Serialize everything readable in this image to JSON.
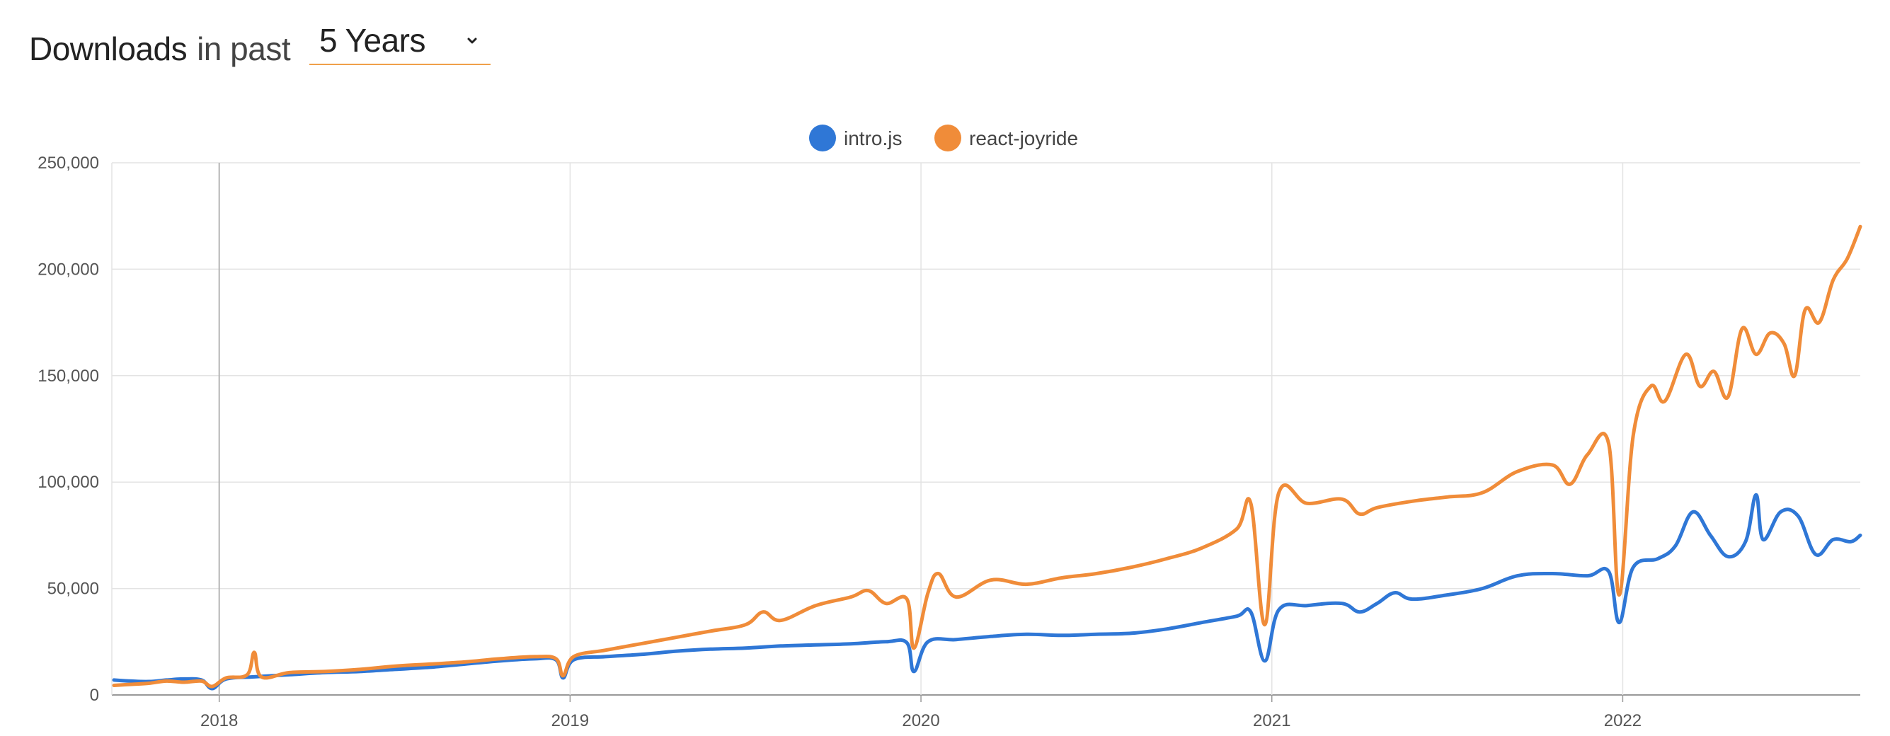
{
  "header": {
    "title_strong": "Downloads",
    "title_light": "in past",
    "period_select": {
      "selected": "5 Years"
    }
  },
  "colors": {
    "accent": "#f0a04a",
    "intro_js": "#2f77d6",
    "react_joyride": "#f08c39",
    "grid": "#e3e3e3",
    "axis": "#999999"
  },
  "icons": {
    "dropdown": "chevron-down-icon"
  },
  "chart_data": {
    "type": "line",
    "title": "",
    "xlabel": "",
    "ylabel": "",
    "legend_position": "top-center",
    "grid": true,
    "xlim": [
      2017.694,
      2022.677
    ],
    "ylim": [
      0,
      250000
    ],
    "y_ticks": [
      0,
      50000,
      100000,
      150000,
      200000,
      250000
    ],
    "y_tick_labels": [
      "0",
      "50,000",
      "100,000",
      "150,000",
      "200,000",
      "250,000"
    ],
    "x_ticks": [
      2018,
      2019,
      2020,
      2021,
      2022
    ],
    "x_tick_labels": [
      "2018",
      "2019",
      "2020",
      "2021",
      "2022"
    ],
    "series": [
      {
        "name": "intro.js",
        "color": "#2f77d6",
        "points": [
          [
            2017.7,
            7000
          ],
          [
            2017.75,
            6500
          ],
          [
            2017.8,
            6300
          ],
          [
            2017.85,
            7000
          ],
          [
            2017.9,
            7500
          ],
          [
            2017.95,
            7000
          ],
          [
            2017.98,
            3000
          ],
          [
            2018.02,
            7500
          ],
          [
            2018.1,
            8500
          ],
          [
            2018.2,
            9500
          ],
          [
            2018.3,
            10500
          ],
          [
            2018.4,
            11000
          ],
          [
            2018.5,
            12000
          ],
          [
            2018.6,
            13000
          ],
          [
            2018.7,
            14500
          ],
          [
            2018.8,
            16000
          ],
          [
            2018.9,
            17000
          ],
          [
            2018.96,
            16500
          ],
          [
            2018.98,
            8000
          ],
          [
            2019.01,
            16500
          ],
          [
            2019.1,
            18000
          ],
          [
            2019.2,
            19000
          ],
          [
            2019.3,
            20500
          ],
          [
            2019.4,
            21500
          ],
          [
            2019.5,
            22000
          ],
          [
            2019.6,
            23000
          ],
          [
            2019.7,
            23500
          ],
          [
            2019.8,
            24000
          ],
          [
            2019.9,
            25000
          ],
          [
            2019.96,
            24500
          ],
          [
            2019.98,
            11000
          ],
          [
            2020.02,
            25000
          ],
          [
            2020.1,
            26000
          ],
          [
            2020.2,
            27500
          ],
          [
            2020.3,
            28500
          ],
          [
            2020.4,
            28000
          ],
          [
            2020.5,
            28500
          ],
          [
            2020.6,
            29000
          ],
          [
            2020.7,
            31000
          ],
          [
            2020.8,
            34000
          ],
          [
            2020.9,
            37000
          ],
          [
            2020.94,
            39000
          ],
          [
            2020.98,
            16000
          ],
          [
            2021.02,
            40000
          ],
          [
            2021.1,
            42000
          ],
          [
            2021.2,
            43000
          ],
          [
            2021.25,
            39000
          ],
          [
            2021.3,
            43000
          ],
          [
            2021.35,
            48000
          ],
          [
            2021.4,
            45000
          ],
          [
            2021.5,
            47000
          ],
          [
            2021.6,
            50000
          ],
          [
            2021.7,
            56000
          ],
          [
            2021.8,
            57000
          ],
          [
            2021.9,
            56000
          ],
          [
            2021.96,
            58000
          ],
          [
            2021.99,
            34000
          ],
          [
            2022.03,
            60000
          ],
          [
            2022.1,
            64000
          ],
          [
            2022.15,
            70000
          ],
          [
            2022.2,
            86000
          ],
          [
            2022.25,
            75000
          ],
          [
            2022.3,
            65000
          ],
          [
            2022.35,
            72000
          ],
          [
            2022.38,
            94000
          ],
          [
            2022.4,
            73000
          ],
          [
            2022.45,
            86000
          ],
          [
            2022.5,
            84000
          ],
          [
            2022.55,
            66000
          ],
          [
            2022.6,
            73000
          ],
          [
            2022.65,
            72000
          ],
          [
            2022.677,
            75000
          ]
        ]
      },
      {
        "name": "react-joyride",
        "color": "#f08c39",
        "points": [
          [
            2017.7,
            4500
          ],
          [
            2017.75,
            5000
          ],
          [
            2017.8,
            5500
          ],
          [
            2017.85,
            6500
          ],
          [
            2017.9,
            6000
          ],
          [
            2017.95,
            6500
          ],
          [
            2017.98,
            4000
          ],
          [
            2018.02,
            8000
          ],
          [
            2018.08,
            9500
          ],
          [
            2018.1,
            20000
          ],
          [
            2018.12,
            8500
          ],
          [
            2018.2,
            10500
          ],
          [
            2018.3,
            11000
          ],
          [
            2018.4,
            12000
          ],
          [
            2018.5,
            13500
          ],
          [
            2018.6,
            14500
          ],
          [
            2018.7,
            15500
          ],
          [
            2018.8,
            17000
          ],
          [
            2018.9,
            18000
          ],
          [
            2018.96,
            17000
          ],
          [
            2018.98,
            9000
          ],
          [
            2019.01,
            18000
          ],
          [
            2019.1,
            21000
          ],
          [
            2019.2,
            24000
          ],
          [
            2019.3,
            27000
          ],
          [
            2019.4,
            30000
          ],
          [
            2019.5,
            33000
          ],
          [
            2019.55,
            39000
          ],
          [
            2019.6,
            35000
          ],
          [
            2019.7,
            42000
          ],
          [
            2019.8,
            46000
          ],
          [
            2019.85,
            49000
          ],
          [
            2019.9,
            43000
          ],
          [
            2019.96,
            45000
          ],
          [
            2019.98,
            22000
          ],
          [
            2020.02,
            48000
          ],
          [
            2020.05,
            57000
          ],
          [
            2020.1,
            46000
          ],
          [
            2020.2,
            54000
          ],
          [
            2020.3,
            52000
          ],
          [
            2020.4,
            55000
          ],
          [
            2020.5,
            57000
          ],
          [
            2020.6,
            60000
          ],
          [
            2020.7,
            64000
          ],
          [
            2020.8,
            69000
          ],
          [
            2020.9,
            78000
          ],
          [
            2020.94,
            90000
          ],
          [
            2020.98,
            33000
          ],
          [
            2021.02,
            95000
          ],
          [
            2021.1,
            90000
          ],
          [
            2021.2,
            92000
          ],
          [
            2021.25,
            85000
          ],
          [
            2021.3,
            88000
          ],
          [
            2021.4,
            91000
          ],
          [
            2021.5,
            93000
          ],
          [
            2021.6,
            95000
          ],
          [
            2021.7,
            105000
          ],
          [
            2021.8,
            108000
          ],
          [
            2021.85,
            99000
          ],
          [
            2021.9,
            113000
          ],
          [
            2021.96,
            118000
          ],
          [
            2021.99,
            47000
          ],
          [
            2022.03,
            122000
          ],
          [
            2022.08,
            145000
          ],
          [
            2022.12,
            138000
          ],
          [
            2022.18,
            160000
          ],
          [
            2022.22,
            145000
          ],
          [
            2022.26,
            152000
          ],
          [
            2022.3,
            140000
          ],
          [
            2022.34,
            172000
          ],
          [
            2022.38,
            160000
          ],
          [
            2022.42,
            170000
          ],
          [
            2022.46,
            165000
          ],
          [
            2022.49,
            150000
          ],
          [
            2022.52,
            181000
          ],
          [
            2022.56,
            175000
          ],
          [
            2022.6,
            195000
          ],
          [
            2022.64,
            205000
          ],
          [
            2022.677,
            220000
          ]
        ]
      }
    ]
  }
}
